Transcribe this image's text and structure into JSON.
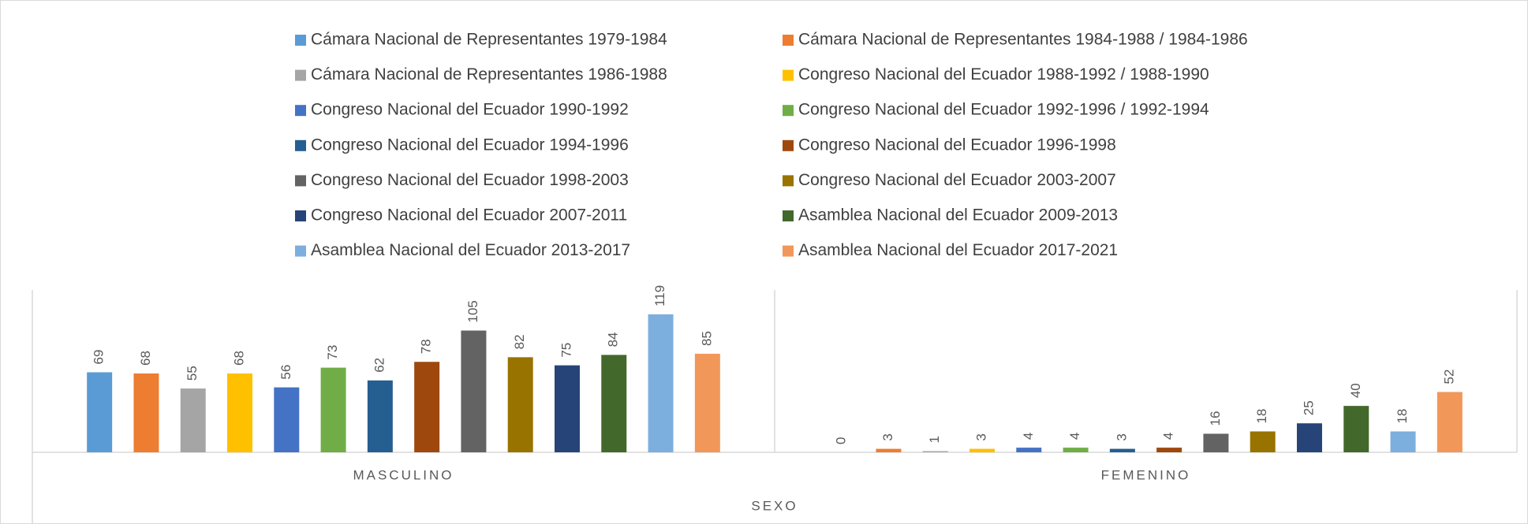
{
  "chart_data": {
    "type": "bar",
    "categories": [
      "MASCULINO",
      "FEMENINO"
    ],
    "xlabel": "SEXO",
    "ylim": [
      0,
      140
    ],
    "series": [
      {
        "name": "Cámara Nacional de Representantes 1979-1984",
        "color": "#5b9bd5",
        "values": [
          69,
          0
        ]
      },
      {
        "name": "Cámara Nacional de Representantes 1984-1988 / 1984-1986",
        "color": "#ed7d31",
        "values": [
          68,
          3
        ]
      },
      {
        "name": "Cámara Nacional de Representantes 1986-1988",
        "color": "#a5a5a5",
        "values": [
          55,
          1
        ]
      },
      {
        "name": "Congreso Nacional del Ecuador 1988-1992 / 1988-1990",
        "color": "#ffc000",
        "values": [
          68,
          3
        ]
      },
      {
        "name": "Congreso Nacional del Ecuador 1990-1992",
        "color": "#4472c4",
        "values": [
          56,
          4
        ]
      },
      {
        "name": "Congreso Nacional del Ecuador 1992-1996 / 1992-1994",
        "color": "#70ad47",
        "values": [
          73,
          4
        ]
      },
      {
        "name": "Congreso Nacional del Ecuador 1994-1996",
        "color": "#255e91",
        "values": [
          62,
          3
        ]
      },
      {
        "name": "Congreso Nacional del Ecuador 1996-1998",
        "color": "#9e480e",
        "values": [
          78,
          4
        ]
      },
      {
        "name": "Congreso Nacional del Ecuador 1998-2003",
        "color": "#636363",
        "values": [
          105,
          16
        ]
      },
      {
        "name": "Congreso Nacional del Ecuador 2003-2007",
        "color": "#997300",
        "values": [
          82,
          18
        ]
      },
      {
        "name": "Congreso Nacional del Ecuador 2007-2011",
        "color": "#264478",
        "values": [
          75,
          25
        ]
      },
      {
        "name": "Asamblea Nacional del Ecuador 2009-2013",
        "color": "#43682b",
        "values": [
          84,
          40
        ]
      },
      {
        "name": "Asamblea Nacional del Ecuador 2013-2017",
        "color": "#7cafdd",
        "values": [
          119,
          18
        ]
      },
      {
        "name": "Asamblea Nacional del Ecuador 2017-2021",
        "color": "#f1975a",
        "values": [
          85,
          52
        ]
      }
    ]
  }
}
